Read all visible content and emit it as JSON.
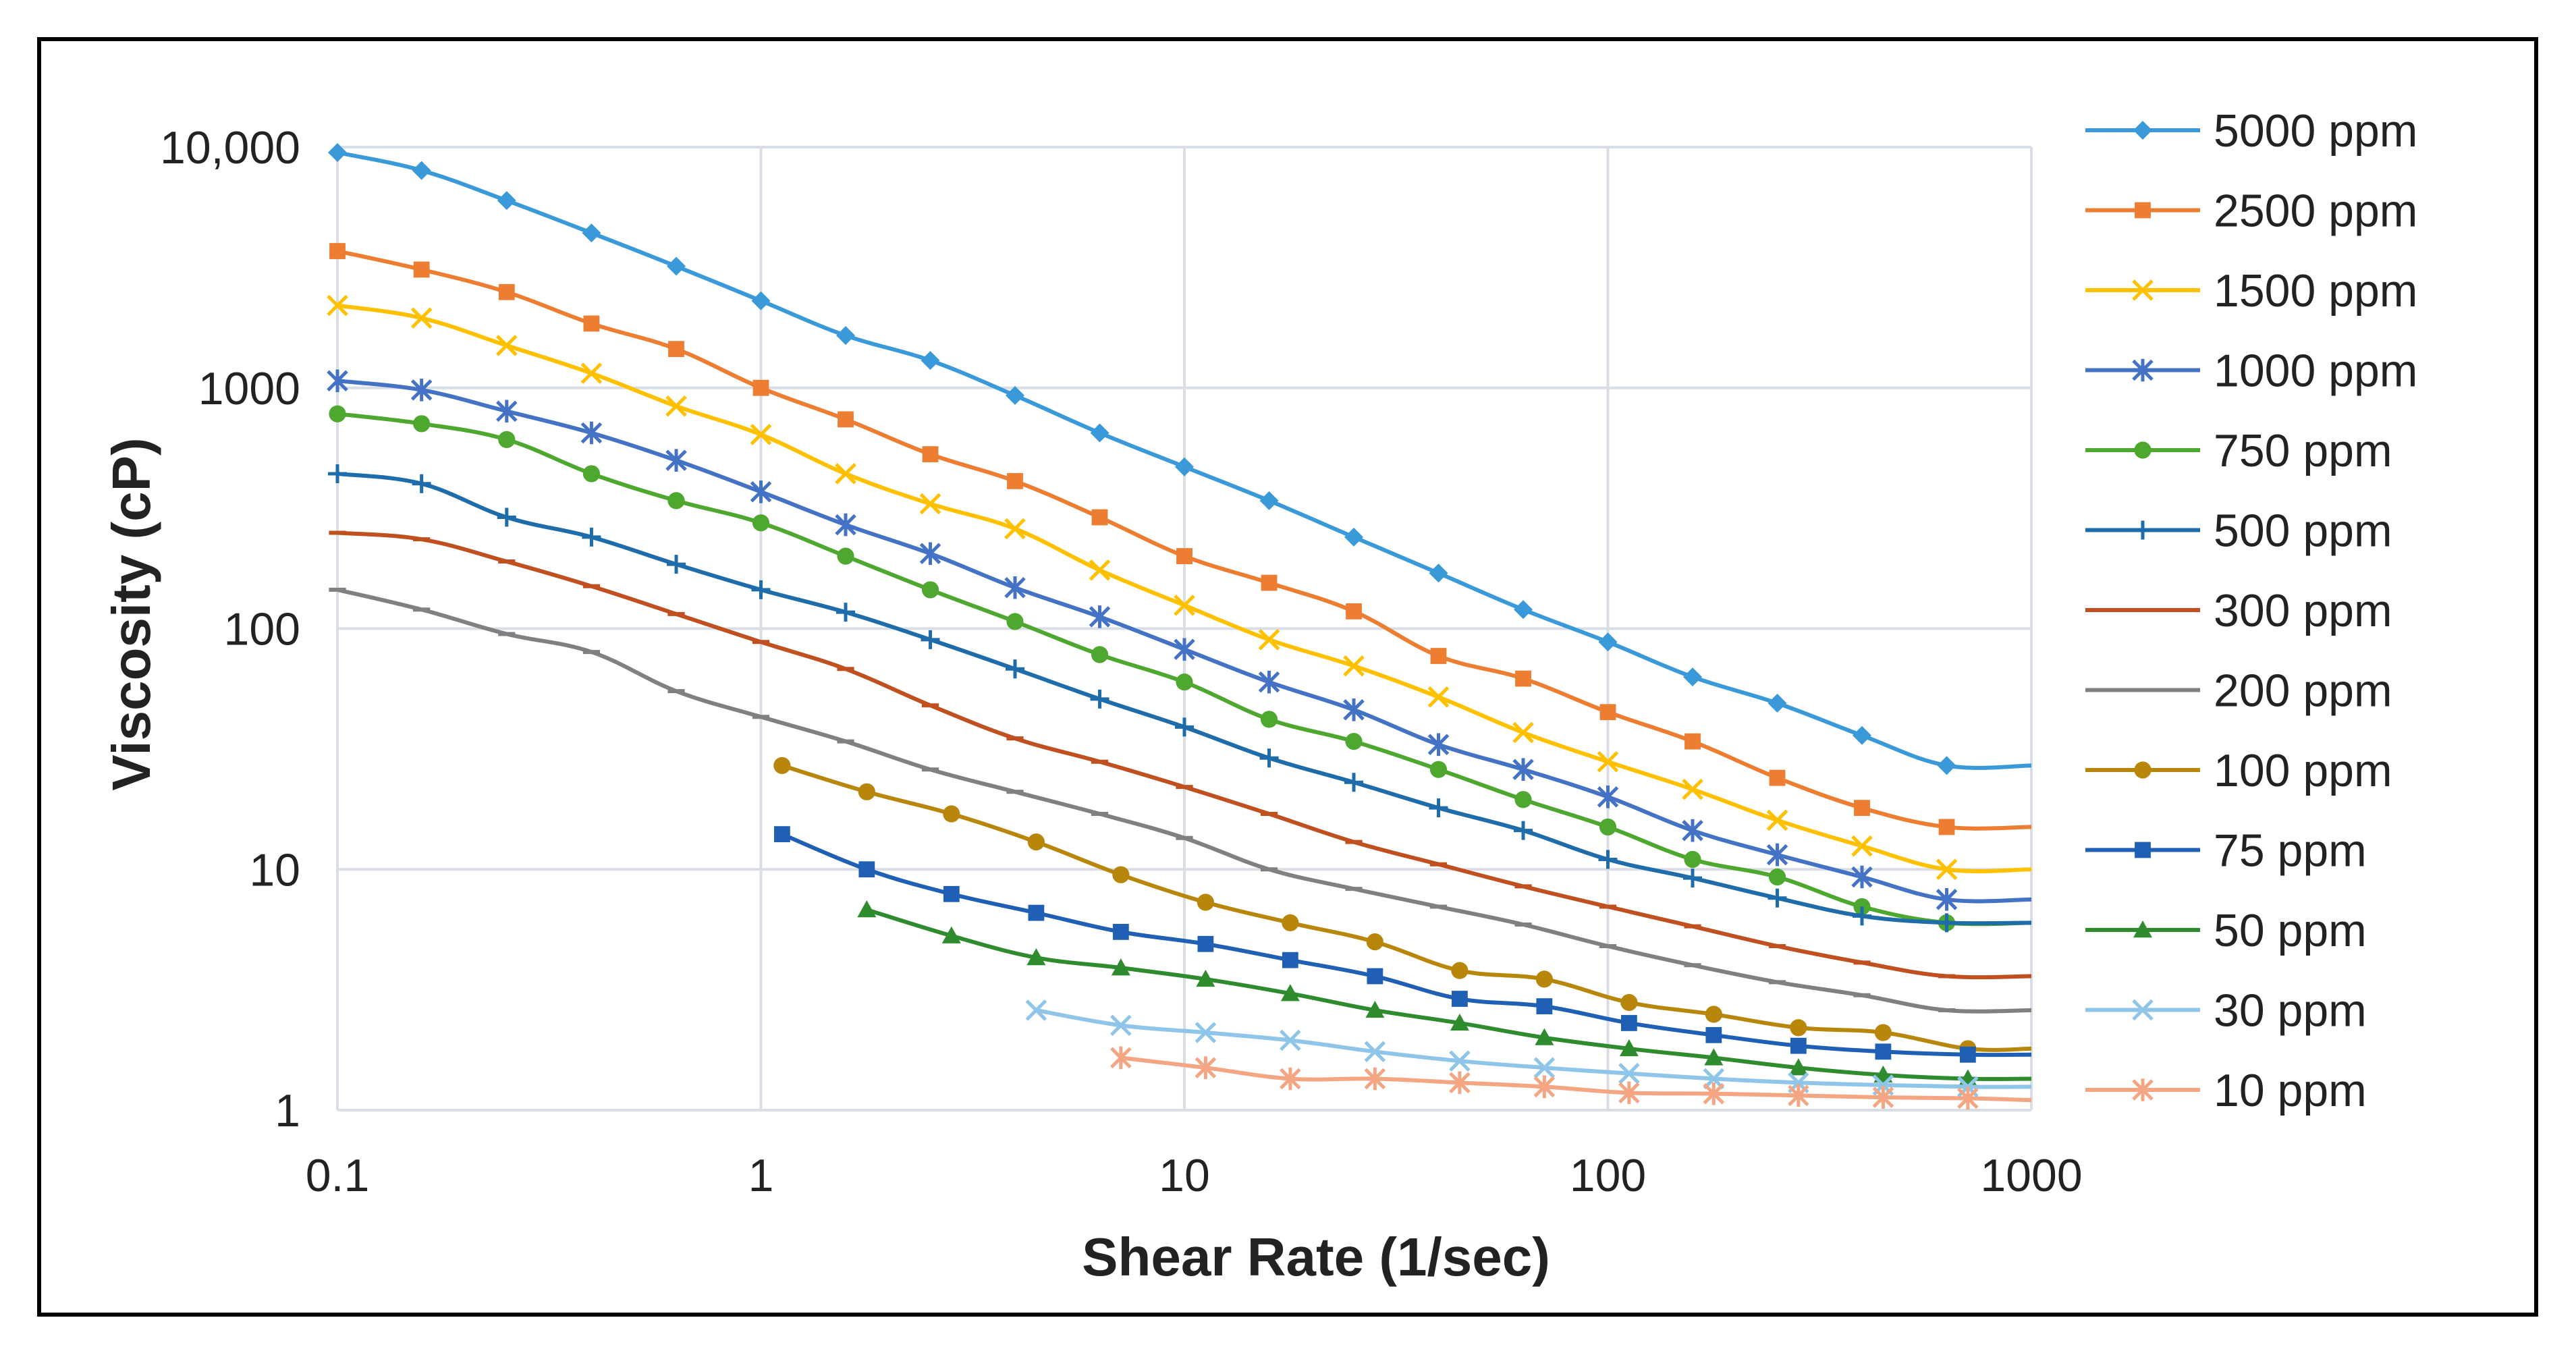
{
  "chart_data": {
    "type": "line",
    "title": "",
    "xlabel": "Shear Rate (1/sec)",
    "ylabel": "Viscosity (cP)",
    "xscale": "log",
    "yscale": "log",
    "xlim": [
      0.1,
      1000
    ],
    "ylim": [
      1,
      10000
    ],
    "grid": true,
    "legend_position": "right",
    "x_ticks": [
      {
        "value": 0.1,
        "label": "0.1"
      },
      {
        "value": 1,
        "label": "1"
      },
      {
        "value": 10,
        "label": "10"
      },
      {
        "value": 100,
        "label": "100"
      },
      {
        "value": 1000,
        "label": "1000"
      }
    ],
    "y_ticks": [
      {
        "value": 1,
        "label": "1"
      },
      {
        "value": 10,
        "label": "10"
      },
      {
        "value": 100,
        "label": "100"
      },
      {
        "value": 1000,
        "label": "1000"
      },
      {
        "value": 10000,
        "label": "10,000"
      }
    ],
    "series": [
      {
        "name": "5000 ppm",
        "color": "#3a9ad9",
        "marker": "diamond",
        "x": [
          0.1,
          0.158,
          0.251,
          0.398,
          0.631,
          1,
          1.585,
          2.512,
          3.981,
          6.31,
          10,
          15.85,
          25.12,
          39.81,
          63.1,
          100,
          158.5,
          251.2,
          398.1,
          631,
          1000
        ],
        "y": [
          9500,
          8000,
          6000,
          4400,
          3200,
          2300,
          1650,
          1300,
          930,
          650,
          470,
          340,
          240,
          170,
          120,
          88,
          63,
          49,
          36,
          27,
          27
        ]
      },
      {
        "name": "2500 ppm",
        "color": "#ed7d31",
        "marker": "square",
        "x": [
          0.1,
          0.158,
          0.251,
          0.398,
          0.631,
          1,
          1.585,
          2.512,
          3.981,
          6.31,
          10,
          15.85,
          25.12,
          39.81,
          63.1,
          100,
          158.5,
          251.2,
          398.1,
          631,
          1000
        ],
        "y": [
          3700,
          3100,
          2500,
          1850,
          1450,
          1000,
          740,
          530,
          410,
          290,
          200,
          155,
          118,
          77,
          62,
          45,
          34,
          24,
          18,
          15,
          15
        ]
      },
      {
        "name": "1500 ppm",
        "color": "#ffc000",
        "marker": "x",
        "x": [
          0.1,
          0.158,
          0.251,
          0.398,
          0.631,
          1,
          1.585,
          2.512,
          3.981,
          6.31,
          10,
          15.85,
          25.12,
          39.81,
          63.1,
          100,
          158.5,
          251.2,
          398.1,
          631,
          1000
        ],
        "y": [
          2200,
          1950,
          1500,
          1150,
          840,
          640,
          440,
          330,
          260,
          175,
          125,
          90,
          70,
          52,
          37,
          28,
          21.5,
          16,
          12.5,
          10,
          10
        ]
      },
      {
        "name": "1000 ppm",
        "color": "#4472c4",
        "marker": "star",
        "x": [
          0.1,
          0.158,
          0.251,
          0.398,
          0.631,
          1,
          1.585,
          2.512,
          3.981,
          6.31,
          10,
          15.85,
          25.12,
          39.81,
          63.1,
          100,
          158.5,
          251.2,
          398.1,
          631,
          1000
        ],
        "y": [
          1070,
          980,
          800,
          650,
          500,
          370,
          270,
          205,
          148,
          112,
          82,
          60,
          46,
          33,
          26,
          20,
          14.5,
          11.5,
          9.3,
          7.5,
          7.5
        ]
      },
      {
        "name": "750 ppm",
        "color": "#4ea72e",
        "marker": "circle",
        "x": [
          0.1,
          0.158,
          0.251,
          0.398,
          0.631,
          1,
          1.585,
          2.512,
          3.981,
          6.31,
          10,
          15.85,
          25.12,
          39.81,
          63.1,
          100,
          158.5,
          251.2,
          398.1,
          631,
          1000
        ],
        "y": [
          780,
          710,
          610,
          440,
          340,
          275,
          200,
          145,
          107,
          78,
          60,
          42,
          34,
          26,
          19.5,
          15,
          11,
          9.3,
          7,
          6,
          6
        ]
      },
      {
        "name": "500 ppm",
        "color": "#1f6cab",
        "marker": "plus",
        "x": [
          0.1,
          0.158,
          0.251,
          0.398,
          0.631,
          1,
          1.585,
          2.512,
          3.981,
          6.31,
          10,
          15.85,
          25.12,
          39.81,
          63.1,
          100,
          158.5,
          251.2,
          398.1,
          631,
          1000
        ],
        "y": [
          440,
          400,
          290,
          240,
          185,
          145,
          117,
          90,
          68,
          51,
          39,
          29,
          23,
          18,
          14.5,
          11,
          9.2,
          7.6,
          6.4,
          6,
          6
        ]
      },
      {
        "name": "300 ppm",
        "color": "#c0501f",
        "marker": "dash",
        "x": [
          0.1,
          0.158,
          0.251,
          0.398,
          0.631,
          1,
          1.585,
          2.512,
          3.981,
          6.31,
          10,
          15.85,
          25.12,
          39.81,
          63.1,
          100,
          158.5,
          251.2,
          398.1,
          631,
          1000
        ],
        "y": [
          250,
          235,
          190,
          150,
          115,
          88,
          68,
          48,
          35,
          28,
          22,
          17,
          13,
          10.5,
          8.5,
          7,
          5.8,
          4.8,
          4.1,
          3.6,
          3.6
        ]
      },
      {
        "name": "200 ppm",
        "color": "#808080",
        "marker": "dash",
        "x": [
          0.1,
          0.158,
          0.251,
          0.398,
          0.631,
          1,
          1.585,
          2.512,
          3.981,
          6.31,
          10,
          15.85,
          25.12,
          39.81,
          63.1,
          100,
          158.5,
          251.2,
          398.1,
          631,
          1000
        ],
        "y": [
          145,
          120,
          95,
          80,
          55,
          43,
          34,
          26,
          21,
          17,
          13.5,
          10,
          8.3,
          7,
          5.9,
          4.8,
          4,
          3.4,
          3,
          2.6,
          2.6
        ]
      },
      {
        "name": "100 ppm",
        "color": "#b8860b",
        "marker": "circle",
        "x": [
          1.122,
          1.778,
          2.818,
          4.467,
          7.079,
          11.22,
          17.78,
          28.18,
          44.67,
          70.79,
          112.2,
          177.8,
          281.8,
          446.7,
          707.9,
          1000
        ],
        "y": [
          27,
          21,
          17,
          13,
          9.5,
          7.3,
          6,
          5,
          3.8,
          3.5,
          2.8,
          2.5,
          2.2,
          2.1,
          1.8,
          1.8
        ]
      },
      {
        "name": "75 ppm",
        "color": "#1f5fb4",
        "marker": "square",
        "x": [
          1.122,
          1.778,
          2.818,
          4.467,
          7.079,
          11.22,
          17.78,
          28.18,
          44.67,
          70.79,
          112.2,
          177.8,
          281.8,
          446.7,
          707.9,
          1000
        ],
        "y": [
          14,
          10,
          7.9,
          6.6,
          5.5,
          4.9,
          4.2,
          3.6,
          2.9,
          2.7,
          2.3,
          2.05,
          1.85,
          1.75,
          1.7,
          1.7
        ]
      },
      {
        "name": "50 ppm",
        "color": "#2e8b2e",
        "marker": "triangle",
        "x": [
          1.778,
          2.818,
          4.467,
          7.079,
          11.22,
          17.78,
          28.18,
          44.67,
          70.79,
          112.2,
          177.8,
          281.8,
          446.7,
          707.9,
          1000
        ],
        "y": [
          6.8,
          5.3,
          4.3,
          3.9,
          3.5,
          3.05,
          2.6,
          2.3,
          2.0,
          1.8,
          1.65,
          1.5,
          1.4,
          1.35,
          1.35
        ]
      },
      {
        "name": "30 ppm",
        "color": "#8ec5e8",
        "marker": "x",
        "x": [
          4.467,
          7.079,
          11.22,
          17.78,
          28.18,
          44.67,
          70.79,
          112.2,
          177.8,
          281.8,
          446.7,
          707.9,
          1000
        ],
        "y": [
          2.6,
          2.25,
          2.1,
          1.95,
          1.75,
          1.6,
          1.5,
          1.42,
          1.35,
          1.3,
          1.27,
          1.25,
          1.25
        ]
      },
      {
        "name": "10 ppm",
        "color": "#f4a582",
        "marker": "star",
        "x": [
          7.079,
          11.22,
          17.78,
          28.18,
          44.67,
          70.79,
          112.2,
          177.8,
          281.8,
          446.7,
          707.9,
          1000
        ],
        "y": [
          1.65,
          1.5,
          1.35,
          1.35,
          1.3,
          1.25,
          1.18,
          1.17,
          1.15,
          1.13,
          1.12,
          1.1
        ]
      }
    ]
  }
}
